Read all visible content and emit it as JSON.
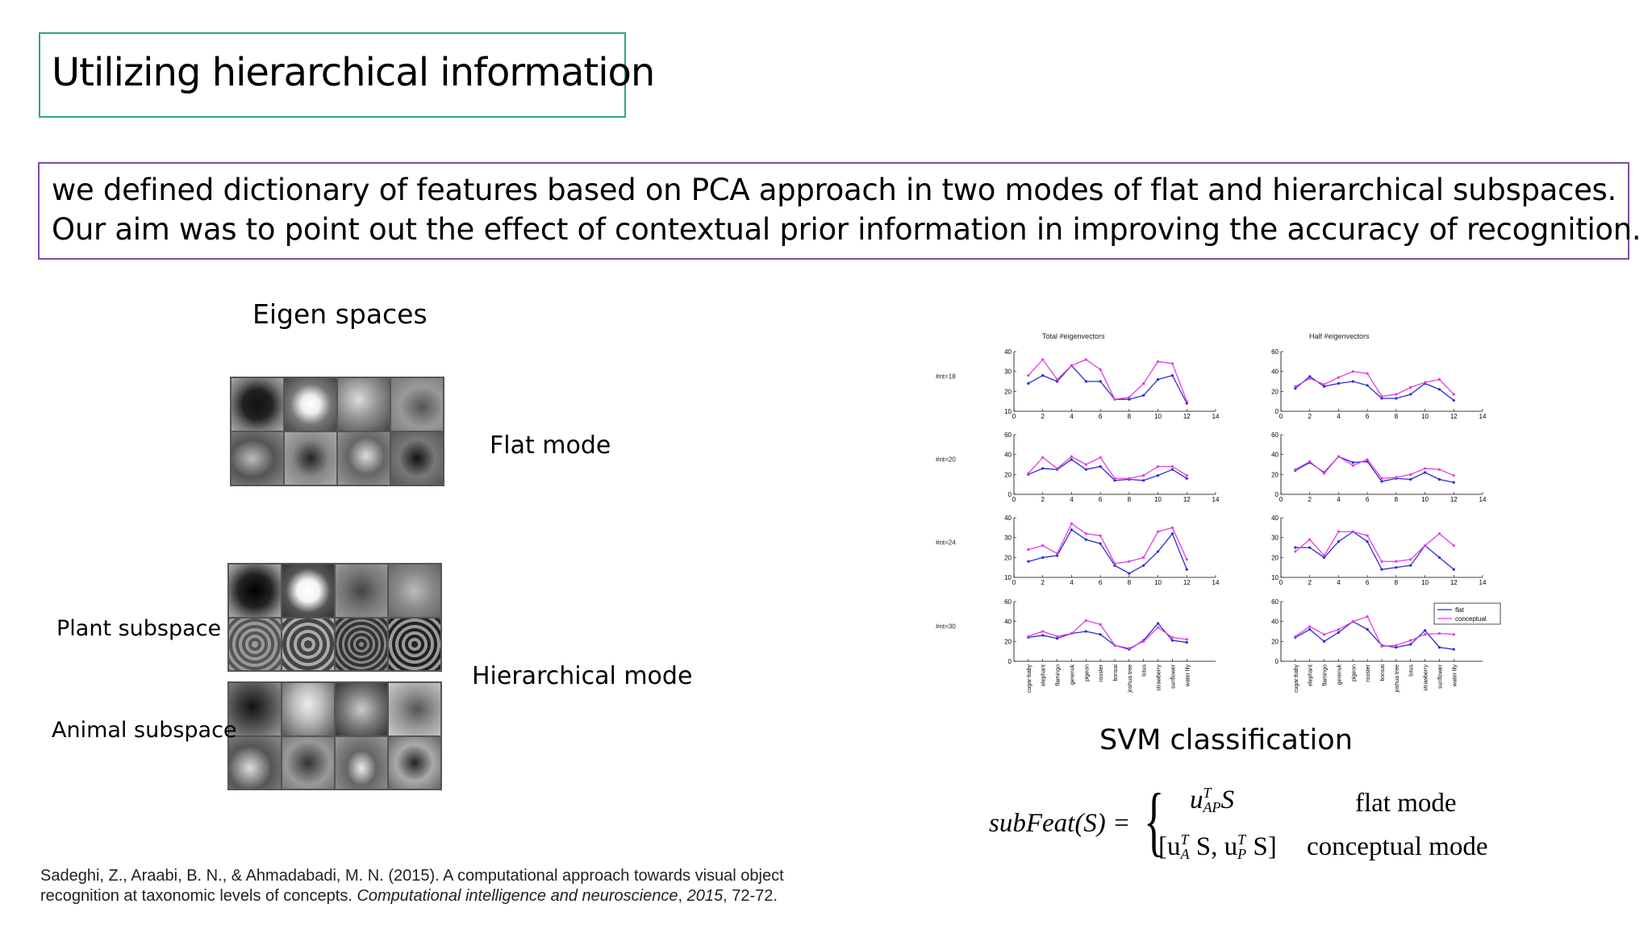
{
  "slide": {
    "title": "Utilizing hierarchical information",
    "description": [
      "we defined dictionary of features based on PCA approach in two modes of flat and hierarchical subspaces.",
      "Our aim was to point out the effect of contextual prior information in improving the accuracy of recognition."
    ],
    "eigen_heading": "Eigen spaces",
    "flat_mode_label": "Flat mode",
    "hierarchical_mode_label": "Hierarchical mode",
    "plant_subspace_label": "Plant subspace",
    "animal_subspace_label": "Animal subspace",
    "svm_heading": "SVM classification",
    "formula": {
      "lhs": "subFeat(S) =",
      "case1_expr": "u",
      "case1_sup": "T",
      "case1_sub": "AP",
      "case1_tail": "S",
      "case1_mode": "flat mode",
      "case2_expr": "[u",
      "case2_sup1": "T",
      "case2_sub1": "A",
      "case2_mid": " S, u",
      "case2_sup2": "T",
      "case2_sub2": "P",
      "case2_tail": " S]",
      "case2_mode": "conceptual mode"
    },
    "citation_plain": "Sadeghi, Z., Araabi, B. N., & Ahmadabadi, M. N. (2015). A computational approach towards visual object",
    "citation_line2_plain": "recognition at taxonomic levels of concepts. ",
    "citation_journal": "Computational intelligence and neuroscience",
    "citation_sep": ", ",
    "citation_year": "2015",
    "citation_pages": ", 72-72."
  },
  "chart_data": {
    "type": "line",
    "column_titles": [
      "Total #eigenvectors",
      "Half #eigenvectors"
    ],
    "row_labels": [
      "#nt=18",
      "#nt=20",
      "#nt=24",
      "#nt=30"
    ],
    "x_ticks": [
      0,
      2,
      4,
      6,
      8,
      10,
      12,
      14
    ],
    "xlim": [
      0,
      14
    ],
    "categories": [
      "cugar-baby",
      "elephant",
      "flamingo",
      "gerenuk",
      "pigeon",
      "rooster",
      "bonsai",
      "joshua tree",
      "lotus",
      "strawberry",
      "sunflower",
      "water lily"
    ],
    "legend": [
      "flat",
      "conceptual"
    ],
    "legend_position": "bottom-right panel",
    "colors": {
      "flat": "#2b2bd6",
      "conceptual": "#e040e0"
    },
    "panels": [
      {
        "row": 0,
        "col": 0,
        "ylim": [
          10,
          40
        ],
        "yticks": [
          10,
          20,
          30,
          40
        ],
        "series": [
          {
            "name": "flat",
            "values": [
              24,
              28,
              25,
              33,
              25,
              25,
              16,
              16,
              18,
              26,
              28,
              14
            ]
          },
          {
            "name": "conceptual",
            "values": [
              28,
              36,
              26,
              33,
              36,
              31,
              16,
              17,
              24,
              35,
              34,
              15
            ]
          }
        ]
      },
      {
        "row": 0,
        "col": 1,
        "ylim": [
          0,
          60
        ],
        "yticks": [
          0,
          20,
          40,
          60
        ],
        "series": [
          {
            "name": "flat",
            "values": [
              23,
              35,
              25,
              28,
              30,
              26,
              13,
              13,
              17,
              28,
              22,
              11
            ]
          },
          {
            "name": "conceptual",
            "values": [
              25,
              33,
              27,
              34,
              40,
              38,
              15,
              17,
              24,
              29,
              32,
              17
            ]
          }
        ]
      },
      {
        "row": 1,
        "col": 0,
        "ylim": [
          0,
          60
        ],
        "yticks": [
          0,
          20,
          40,
          60
        ],
        "series": [
          {
            "name": "flat",
            "values": [
              20,
              26,
              25,
              35,
              25,
              28,
              14,
              15,
              14,
              19,
              25,
              16
            ]
          },
          {
            "name": "conceptual",
            "values": [
              21,
              37,
              26,
              38,
              30,
              37,
              16,
              16,
              19,
              28,
              28,
              19
            ]
          }
        ]
      },
      {
        "row": 1,
        "col": 1,
        "ylim": [
          0,
          60
        ],
        "yticks": [
          0,
          20,
          40,
          60
        ],
        "series": [
          {
            "name": "flat",
            "values": [
              24,
              32,
              22,
              38,
              32,
              33,
              13,
              16,
              15,
              22,
              15,
              12
            ]
          },
          {
            "name": "conceptual",
            "values": [
              25,
              33,
              21,
              38,
              29,
              35,
              16,
              17,
              20,
              26,
              25,
              19
            ]
          }
        ]
      },
      {
        "row": 2,
        "col": 0,
        "ylim": [
          10,
          40
        ],
        "yticks": [
          10,
          20,
          30,
          40
        ],
        "series": [
          {
            "name": "flat",
            "values": [
              18,
              20,
              21,
              34,
              29,
              27,
              16,
              12,
              16,
              23,
              32,
              14
            ]
          },
          {
            "name": "conceptual",
            "values": [
              24,
              26,
              22,
              37,
              32,
              31,
              17,
              18,
              20,
              33,
              35,
              19
            ]
          }
        ]
      },
      {
        "row": 2,
        "col": 1,
        "ylim": [
          10,
          40
        ],
        "yticks": [
          10,
          20,
          30,
          40
        ],
        "series": [
          {
            "name": "flat",
            "values": [
              25,
              25,
              20,
              28,
              33,
              28,
              14,
              15,
              16,
              26,
              20,
              14
            ]
          },
          {
            "name": "conceptual",
            "values": [
              23,
              29,
              21,
              33,
              33,
              31,
              18,
              18,
              19,
              26,
              32,
              26
            ]
          }
        ]
      },
      {
        "row": 3,
        "col": 0,
        "ylim": [
          0,
          60
        ],
        "yticks": [
          0,
          20,
          40,
          60
        ],
        "series": [
          {
            "name": "flat",
            "values": [
              24,
              26,
              23,
              28,
              30,
              27,
              16,
              12,
              21,
              38,
              21,
              19
            ]
          },
          {
            "name": "conceptual",
            "values": [
              25,
              30,
              25,
              28,
              41,
              37,
              16,
              13,
              20,
              34,
              24,
              22
            ]
          }
        ]
      },
      {
        "row": 3,
        "col": 1,
        "ylim": [
          0,
          60
        ],
        "yticks": [
          0,
          20,
          40,
          60
        ],
        "series": [
          {
            "name": "flat",
            "values": [
              24,
              32,
              20,
              29,
              40,
              32,
              16,
              14,
              17,
              31,
              14,
              12
            ]
          },
          {
            "name": "conceptual",
            "values": [
              25,
              35,
              27,
              32,
              40,
              45,
              15,
              16,
              21,
              27,
              28,
              27
            ]
          }
        ]
      }
    ]
  }
}
